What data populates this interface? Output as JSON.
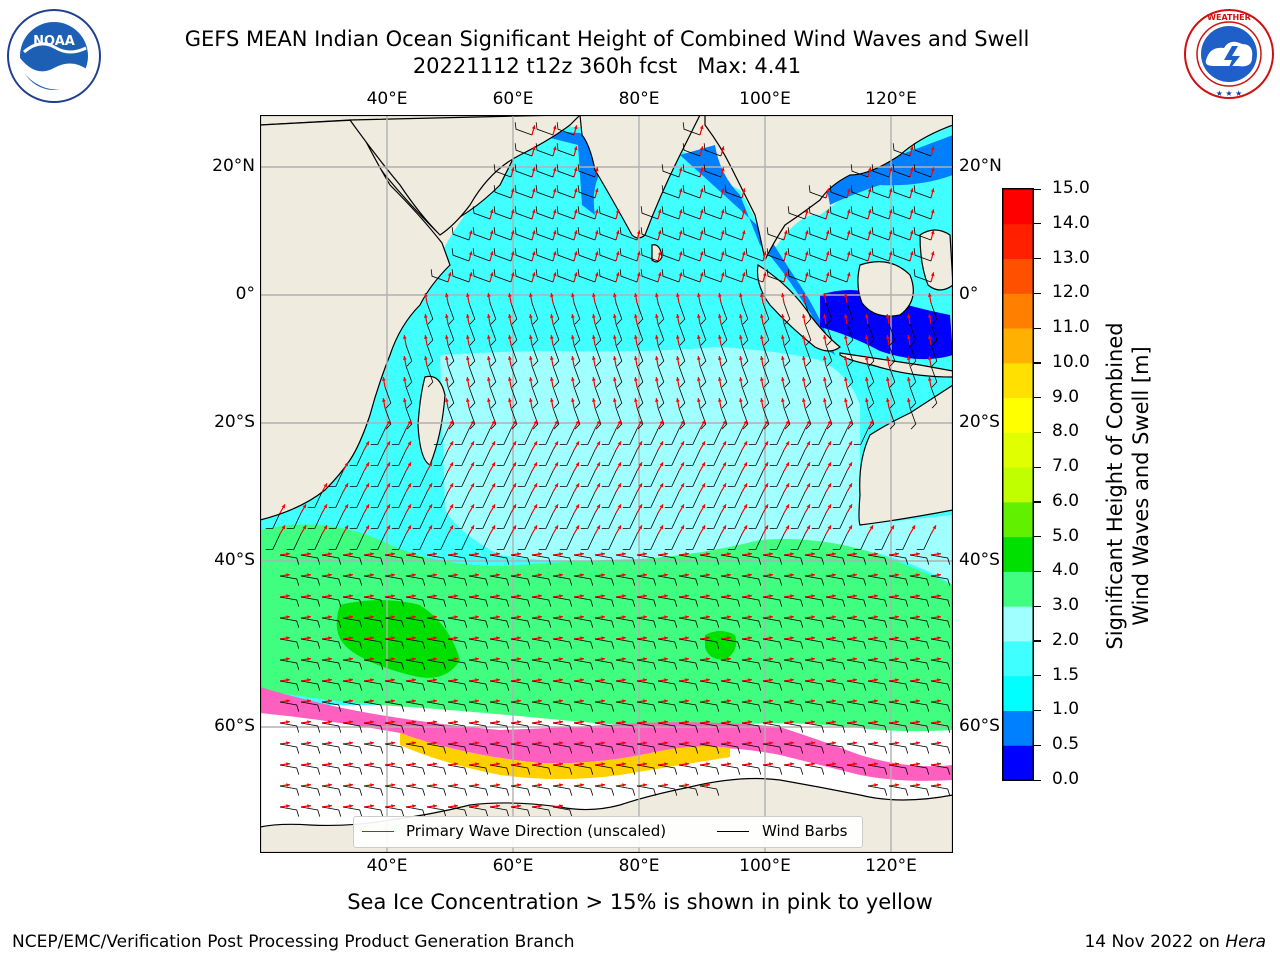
{
  "header": {
    "title_line1": "GEFS MEAN Indian Ocean Significant Height of Combined Wind Waves and Swell",
    "title_line2": "20221112 t12z 360h fcst   Max: 4.41"
  },
  "logos": {
    "left": {
      "name": "NOAA",
      "ring_text": "NATIONAL OCEANIC AND ATMOSPHERIC ADMINISTRATION",
      "bottom_text": "U.S. DEPARTMENT OF COMMERCE"
    },
    "right": {
      "ring_text": "NATIONAL WEATHER SERVICE"
    }
  },
  "map": {
    "lon_labels": [
      "40°E",
      "60°E",
      "80°E",
      "100°E",
      "120°E"
    ],
    "lat_labels": [
      "20°N",
      "0°",
      "20°S",
      "40°S",
      "60°S"
    ],
    "lon_values": [
      40,
      60,
      80,
      100,
      120
    ],
    "lat_values": [
      20,
      0,
      -20,
      -40,
      -60
    ],
    "extent": {
      "lon_min": 20,
      "lon_max": 130,
      "lat_min": -75,
      "lat_max": 27
    },
    "colors": {
      "land": "#efecdf",
      "ice_free_white": "#ffffff",
      "grid": "#b0b0b0",
      "wave_arrow": "#ff0000",
      "wind_barb": "#000000"
    }
  },
  "colorbar": {
    "label_line1": "Significant Height of Combined",
    "label_line2": "Wind Waves and Swell [m]",
    "ticks": [
      "0.0",
      "0.5",
      "1.0",
      "1.5",
      "2.0",
      "3.0",
      "4.0",
      "5.0",
      "6.0",
      "7.0",
      "8.0",
      "9.0",
      "10.0",
      "11.0",
      "12.0",
      "13.0",
      "14.0",
      "15.0"
    ],
    "colors": [
      "#0000ff",
      "#0080ff",
      "#00ffff",
      "#40ffff",
      "#a0ffff",
      "#40ff80",
      "#00e000",
      "#60f000",
      "#c0ff00",
      "#e0ff00",
      "#ffff00",
      "#ffe000",
      "#ffb000",
      "#ff8000",
      "#ff5000",
      "#ff2000",
      "#ff0000"
    ]
  },
  "legend": {
    "primary_wave_label": "Primary Wave Direction (unscaled)",
    "wind_barbs_label": "Wind Barbs"
  },
  "caption": "Sea Ice Concentration > 15% is shown in pink to yellow",
  "footer": {
    "left": "NCEP/EMC/Verification Post Processing Product Generation Branch",
    "right_date": "14 Nov 2022 on",
    "right_machine": "Hera"
  }
}
